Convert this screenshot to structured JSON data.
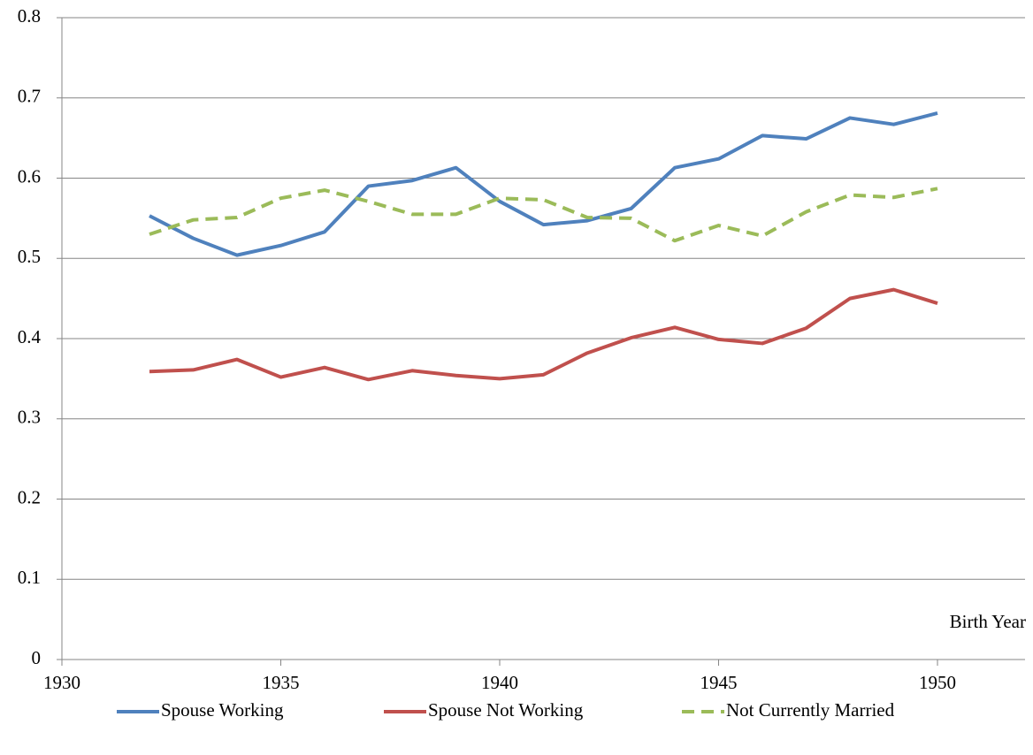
{
  "chart_data": {
    "type": "line",
    "x_label": "Birth Year",
    "x": [
      1932,
      1933,
      1934,
      1935,
      1936,
      1937,
      1938,
      1939,
      1940,
      1941,
      1942,
      1943,
      1944,
      1945,
      1946,
      1947,
      1948,
      1949,
      1950
    ],
    "series": [
      {
        "name": "Spouse Working",
        "color": "#4f81bd",
        "dash": false,
        "values": [
          0.553,
          0.525,
          0.504,
          0.516,
          0.533,
          0.59,
          0.597,
          0.613,
          0.571,
          0.542,
          0.547,
          0.562,
          0.613,
          0.624,
          0.653,
          0.649,
          0.675,
          0.667,
          0.681
        ]
      },
      {
        "name": "Spouse Not Working",
        "color": "#c0504d",
        "dash": false,
        "values": [
          0.359,
          0.361,
          0.374,
          0.352,
          0.364,
          0.349,
          0.36,
          0.354,
          0.35,
          0.355,
          0.382,
          0.401,
          0.414,
          0.399,
          0.394,
          0.413,
          0.45,
          0.461,
          0.444
        ]
      },
      {
        "name": "Not Currently Married",
        "color": "#9bbb59",
        "dash": true,
        "values": [
          0.53,
          0.548,
          0.551,
          0.575,
          0.585,
          0.571,
          0.555,
          0.555,
          0.575,
          0.573,
          0.551,
          0.55,
          0.522,
          0.541,
          0.528,
          0.558,
          0.579,
          0.576,
          0.587
        ]
      }
    ],
    "xlim": [
      1930,
      1952
    ],
    "xticks": [
      1930,
      1935,
      1940,
      1945,
      1950
    ],
    "ylim": [
      0,
      0.8
    ],
    "yticks": [
      0,
      0.1,
      0.2,
      0.3,
      0.4,
      0.5,
      0.6,
      0.7,
      0.8
    ],
    "grid": true,
    "legend": "bottom"
  }
}
